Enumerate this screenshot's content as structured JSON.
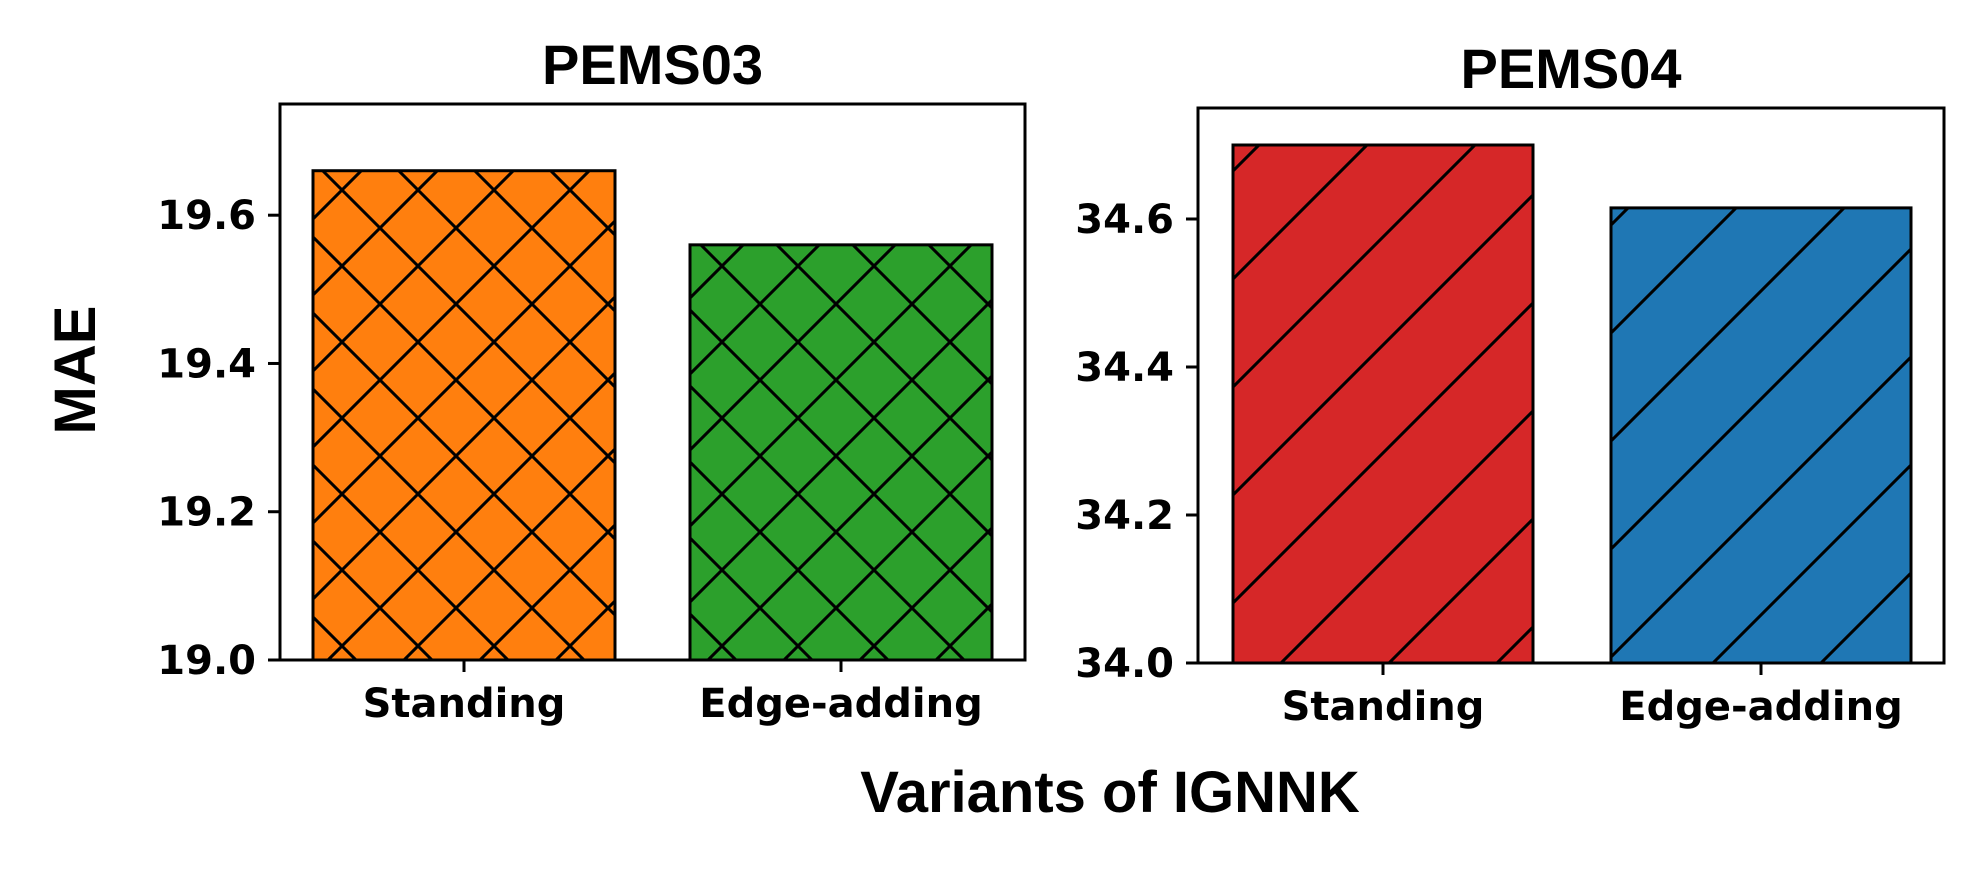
{
  "figure": {
    "xlabel": "Variants of IGNNK",
    "ylabel": "MAE"
  },
  "chart_data": [
    {
      "type": "bar",
      "title": "PEMS03",
      "categories": [
        "Standing",
        "Edge-adding"
      ],
      "values": [
        19.66,
        19.56
      ],
      "colors": [
        "#ff7f0e",
        "#2ca02c"
      ],
      "hatches": [
        "cross",
        "cross"
      ],
      "ylim": [
        19.0,
        19.75
      ],
      "yticks": [
        19.0,
        19.2,
        19.4,
        19.6
      ],
      "ytick_labels": [
        "19.0",
        "19.2",
        "19.4",
        "19.6"
      ],
      "grid": false
    },
    {
      "type": "bar",
      "title": "PEMS04",
      "categories": [
        "Standing",
        "Edge-adding"
      ],
      "values": [
        34.7,
        34.615
      ],
      "colors": [
        "#d62728",
        "#1f77b4"
      ],
      "hatches": [
        "diagonal",
        "diagonal"
      ],
      "ylim": [
        34.0,
        34.75
      ],
      "yticks": [
        34.0,
        34.2,
        34.4,
        34.6
      ],
      "ytick_labels": [
        "34.0",
        "34.2",
        "34.4",
        "34.6"
      ],
      "grid": false
    }
  ]
}
